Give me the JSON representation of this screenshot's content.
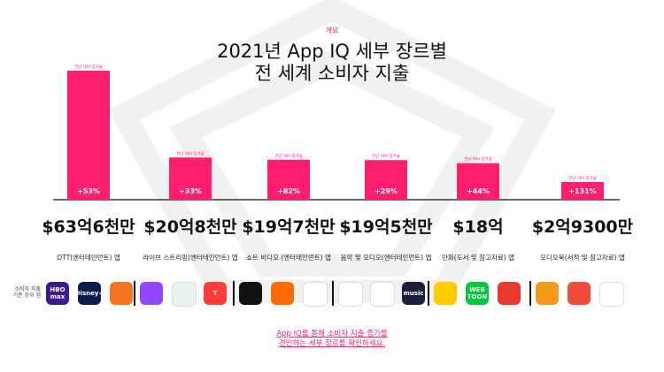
{
  "header": {
    "kicker": "개요",
    "title_line1": "2021년 App IQ 세부 장르별",
    "title_line2": "전 세계 소비자 지출"
  },
  "colors": {
    "accent": "#ff1e6e",
    "text": "#111111",
    "watermark": "#f1f1f1"
  },
  "chart_data": {
    "type": "bar",
    "categories": [
      "OTT(엔터테인먼트) 앱",
      "라이브 스트리밍(엔터테인먼트) 앱",
      "쇼트 비디오 (엔터테인먼트) 앱",
      "음악 및 오디오(엔터테인먼트) 앱",
      "만화(도서 및 참고자료) 앱",
      "오디오북(서적 및 참고자료) 앱"
    ],
    "values": [
      6.36,
      2.08,
      1.97,
      1.95,
      1.8,
      0.293
    ],
    "value_labels": [
      "$63억6천만",
      "$20억8천만",
      "$19억7천만",
      "$19억5천만",
      "$18억",
      "$2억9300만"
    ],
    "growth_labels": [
      "+53%",
      "+33%",
      "+82%",
      "+29%",
      "+44%",
      "+131%"
    ],
    "growth_caption": "전년 대비 증가율",
    "bar_color": "#ff1e6e",
    "grid": false,
    "legend": "none"
  },
  "icons_section": {
    "label": "소비자 지출 기준 상위 앱",
    "groups": [
      [
        {
          "name": "hbo-max-icon",
          "text": "HBO max",
          "bg": "#3b1a8f"
        },
        {
          "name": "disney-plus-icon",
          "text": "Disney+",
          "bg": "#0b1d4d"
        },
        {
          "name": "crunchyroll-icon",
          "text": "",
          "bg": "#f47521"
        }
      ],
      [
        {
          "name": "twitch-icon",
          "text": "",
          "bg": "#9146ff"
        },
        {
          "name": "live-app-icon",
          "text": "",
          "bg": "#e9f3ee"
        },
        {
          "name": "t-app-icon",
          "text": "T",
          "bg": "#ff3b3b"
        }
      ],
      [
        {
          "name": "tiktok-icon",
          "text": "",
          "bg": "#111111"
        },
        {
          "name": "kuaishou-icon",
          "text": "",
          "bg": "#ff6a00"
        },
        {
          "name": "likee-icon",
          "text": "",
          "bg": "#ffffff"
        }
      ],
      [
        {
          "name": "qq-music-icon",
          "text": "",
          "bg": "#ffffff"
        },
        {
          "name": "youtube-music-icon",
          "text": "",
          "bg": "#ffffff"
        },
        {
          "name": "amazon-music-icon",
          "text": "music",
          "bg": "#1b1f3b"
        }
      ],
      [
        {
          "name": "piccoma-icon",
          "text": "",
          "bg": "#ffcc00"
        },
        {
          "name": "line-webtoon-icon",
          "text": "WEB TOON",
          "bg": "#00c73c"
        },
        {
          "name": "magazine-pocket-icon",
          "text": "",
          "bg": "#e8382f"
        }
      ],
      [
        {
          "name": "audible-icon",
          "text": "",
          "bg": "#f7991c"
        },
        {
          "name": "ting-icon",
          "text": "",
          "bg": "#f04a3b"
        },
        {
          "name": "audiobook-a-icon",
          "text": "",
          "bg": "#ffffff"
        }
      ]
    ]
  },
  "footer": {
    "line1": "App IQ를 통해 소비자 지출 증가를",
    "line2": "견인하는 세부 장르를 확인하세요."
  }
}
